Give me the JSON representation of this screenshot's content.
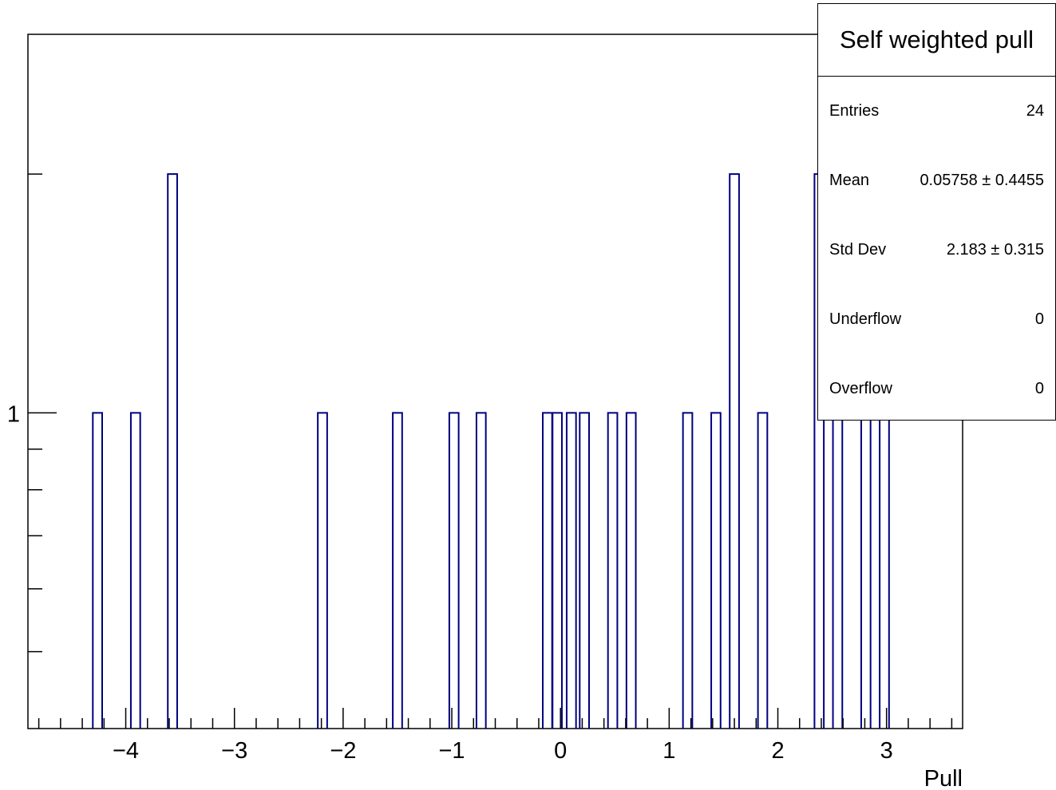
{
  "chart_data": {
    "type": "bar",
    "title": "",
    "xlabel": "Pull",
    "ylabel": "",
    "xlim": [
      -4.9,
      3.7
    ],
    "ylim": [
      0.4,
      3.0
    ],
    "log_y": true,
    "x_ticks": [
      -4,
      -3,
      -2,
      -1,
      0,
      1,
      2,
      3
    ],
    "x_tick_labels": [
      "−4",
      "−3",
      "−2",
      "−1",
      "0",
      "1",
      "2",
      "3"
    ],
    "y_ticks": [
      1
    ],
    "y_tick_labels": [
      "1"
    ],
    "bin_width": 0.086,
    "bins": [
      {
        "x": -4.26,
        "count": 1
      },
      {
        "x": -3.91,
        "count": 1
      },
      {
        "x": -3.57,
        "count": 2
      },
      {
        "x": -2.19,
        "count": 1
      },
      {
        "x": -1.5,
        "count": 1
      },
      {
        "x": -0.98,
        "count": 1
      },
      {
        "x": -0.73,
        "count": 1
      },
      {
        "x": -0.12,
        "count": 1
      },
      {
        "x": -0.03,
        "count": 1
      },
      {
        "x": 0.1,
        "count": 1
      },
      {
        "x": 0.22,
        "count": 1
      },
      {
        "x": 0.48,
        "count": 1
      },
      {
        "x": 0.65,
        "count": 1
      },
      {
        "x": 1.17,
        "count": 1
      },
      {
        "x": 1.43,
        "count": 1
      },
      {
        "x": 1.6,
        "count": 2
      },
      {
        "x": 1.86,
        "count": 1
      },
      {
        "x": 2.38,
        "count": 2
      },
      {
        "x": 2.55,
        "count": 1
      },
      {
        "x": 2.81,
        "count": 1
      },
      {
        "x": 2.98,
        "count": 1
      }
    ],
    "line_color": "#000080",
    "grid": false,
    "legend": "none"
  },
  "stats_box": {
    "title": "Self weighted pull",
    "rows": [
      {
        "label": "Entries",
        "value": "24"
      },
      {
        "label": "Mean",
        "value": "0.05758 ± 0.4455"
      },
      {
        "label": "Std Dev",
        "value": "2.183 ±  0.315"
      },
      {
        "label": "Underflow",
        "value": "0"
      },
      {
        "label": "Overflow",
        "value": "0"
      }
    ]
  }
}
